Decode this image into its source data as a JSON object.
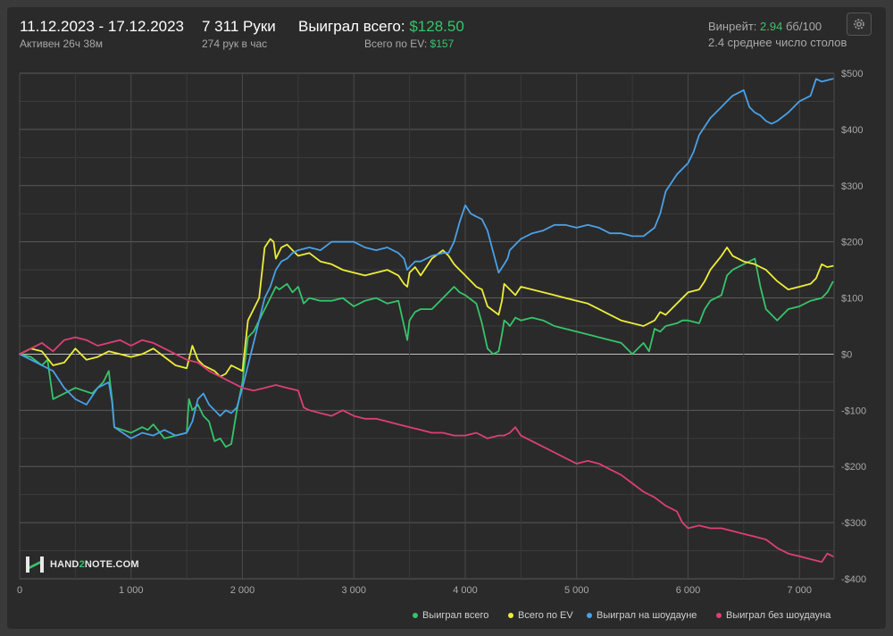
{
  "header": {
    "date_range": "11.12.2023 - 17.12.2023",
    "active": "Активен 26ч 38м",
    "hands": "7 311 Руки",
    "hands_per_hour": "274 рук в час",
    "won_label": "Выиграл всего:",
    "won_value": "$128.50",
    "ev_label": "Всего по EV:",
    "ev_value": "$157",
    "winrate_label": "Винрейт:",
    "winrate_value": "2.94",
    "winrate_unit": "бб/100",
    "avg_tables": "2.4 среднее число столов"
  },
  "logo": {
    "text_a": "HAND",
    "text_b": "2",
    "text_c": "NOTE.COM"
  },
  "colors": {
    "green": "#36c46b",
    "yellow": "#eded3a",
    "blue": "#4aa0e6",
    "pink": "#dc3f76"
  },
  "chart_data": {
    "type": "line",
    "xlim": [
      0,
      7311
    ],
    "ylim": [
      -400,
      500
    ],
    "x_ticks": [
      0,
      1000,
      2000,
      3000,
      4000,
      5000,
      6000,
      7000
    ],
    "x_tick_labels": [
      "0",
      "1 000",
      "2 000",
      "3 000",
      "4 000",
      "5 000",
      "6 000",
      "7 000"
    ],
    "y_ticks": [
      500,
      400,
      300,
      200,
      100,
      0,
      -100,
      -200,
      -300,
      -400
    ],
    "y_tick_labels": [
      "$500",
      "$400",
      "$300",
      "$200",
      "$100",
      "$0",
      "-$100",
      "-$200",
      "-$300",
      "-$400"
    ],
    "grid": true,
    "legend_position": "bottom-right",
    "series": [
      {
        "name": "Выиграл всего",
        "color": "#36c46b",
        "x": [
          0,
          100,
          200,
          250,
          300,
          500,
          650,
          750,
          800,
          830,
          850,
          1000,
          1100,
          1150,
          1200,
          1300,
          1400,
          1500,
          1520,
          1550,
          1600,
          1650,
          1700,
          1750,
          1800,
          1850,
          1900,
          1950,
          2000,
          2050,
          2100,
          2150,
          2200,
          2250,
          2300,
          2330,
          2400,
          2450,
          2500,
          2550,
          2600,
          2700,
          2800,
          2900,
          3000,
          3100,
          3200,
          3300,
          3400,
          3480,
          3500,
          3550,
          3600,
          3700,
          3800,
          3850,
          3900,
          3950,
          4000,
          4100,
          4150,
          4200,
          4250,
          4300,
          4330,
          4350,
          4380,
          4400,
          4450,
          4500,
          4600,
          4700,
          4800,
          4900,
          5000,
          5100,
          5200,
          5300,
          5400,
          5500,
          5600,
          5650,
          5700,
          5750,
          5800,
          5900,
          5950,
          6000,
          6100,
          6150,
          6200,
          6300,
          6350,
          6400,
          6500,
          6600,
          6650,
          6700,
          6800,
          6900,
          7000,
          7100,
          7200,
          7250,
          7300
        ],
        "y": [
          0,
          -5,
          -20,
          -10,
          -80,
          -60,
          -70,
          -50,
          -30,
          -80,
          -130,
          -140,
          -130,
          -135,
          -125,
          -150,
          -145,
          -140,
          -80,
          -100,
          -90,
          -110,
          -120,
          -155,
          -150,
          -165,
          -160,
          -100,
          -50,
          30,
          40,
          60,
          80,
          100,
          120,
          115,
          125,
          110,
          120,
          90,
          100,
          95,
          95,
          100,
          85,
          95,
          100,
          90,
          95,
          25,
          60,
          75,
          80,
          80,
          100,
          110,
          120,
          110,
          105,
          90,
          55,
          10,
          0,
          5,
          35,
          60,
          55,
          50,
          65,
          60,
          65,
          60,
          50,
          45,
          40,
          35,
          30,
          25,
          20,
          0,
          20,
          5,
          45,
          40,
          50,
          55,
          60,
          60,
          55,
          80,
          95,
          105,
          140,
          150,
          160,
          170,
          120,
          80,
          60,
          80,
          85,
          95,
          100,
          110,
          128.5
        ]
      },
      {
        "name": "Всего по EV",
        "color": "#eded3a",
        "x": [
          0,
          100,
          200,
          300,
          400,
          500,
          600,
          700,
          800,
          900,
          1000,
          1100,
          1200,
          1300,
          1400,
          1500,
          1550,
          1600,
          1650,
          1700,
          1750,
          1800,
          1850,
          1900,
          2000,
          2050,
          2100,
          2150,
          2200,
          2250,
          2280,
          2300,
          2350,
          2400,
          2450,
          2500,
          2600,
          2700,
          2800,
          2900,
          3000,
          3100,
          3200,
          3300,
          3400,
          3450,
          3480,
          3500,
          3550,
          3600,
          3700,
          3800,
          3850,
          3900,
          3950,
          4000,
          4100,
          4150,
          4200,
          4300,
          4330,
          4350,
          4400,
          4450,
          4500,
          4600,
          4700,
          4800,
          4900,
          5000,
          5100,
          5200,
          5300,
          5400,
          5500,
          5600,
          5700,
          5750,
          5800,
          5900,
          6000,
          6100,
          6150,
          6200,
          6300,
          6350,
          6400,
          6500,
          6600,
          6650,
          6700,
          6800,
          6900,
          7000,
          7100,
          7150,
          7200,
          7250,
          7300
        ],
        "y": [
          0,
          10,
          5,
          -20,
          -15,
          10,
          -10,
          -5,
          5,
          0,
          -5,
          0,
          10,
          -5,
          -20,
          -25,
          15,
          -10,
          -20,
          -25,
          -30,
          -40,
          -35,
          -20,
          -30,
          60,
          80,
          100,
          190,
          205,
          200,
          170,
          190,
          195,
          185,
          175,
          180,
          165,
          160,
          150,
          145,
          140,
          145,
          150,
          140,
          125,
          120,
          145,
          155,
          140,
          170,
          185,
          175,
          160,
          150,
          140,
          120,
          115,
          85,
          70,
          95,
          125,
          115,
          105,
          120,
          115,
          110,
          105,
          100,
          95,
          90,
          80,
          70,
          60,
          55,
          50,
          60,
          75,
          70,
          90,
          110,
          115,
          130,
          150,
          175,
          190,
          175,
          165,
          160,
          155,
          150,
          130,
          115,
          120,
          125,
          135,
          160,
          155,
          157
        ]
      },
      {
        "name": "Выиграл на шоудауне",
        "color": "#4aa0e6",
        "x": [
          0,
          100,
          200,
          300,
          400,
          500,
          600,
          700,
          800,
          830,
          850,
          1000,
          1100,
          1200,
          1300,
          1400,
          1500,
          1550,
          1600,
          1650,
          1700,
          1750,
          1800,
          1850,
          1900,
          1950,
          2000,
          2050,
          2100,
          2150,
          2200,
          2250,
          2300,
          2350,
          2400,
          2450,
          2500,
          2600,
          2700,
          2800,
          2900,
          3000,
          3100,
          3200,
          3300,
          3400,
          3450,
          3480,
          3500,
          3550,
          3600,
          3700,
          3800,
          3850,
          3900,
          3950,
          4000,
          4050,
          4100,
          4150,
          4200,
          4300,
          4350,
          4380,
          4400,
          4450,
          4500,
          4600,
          4700,
          4800,
          4900,
          5000,
          5100,
          5200,
          5300,
          5400,
          5500,
          5600,
          5700,
          5750,
          5800,
          5900,
          6000,
          6050,
          6100,
          6200,
          6300,
          6350,
          6400,
          6500,
          6550,
          6600,
          6650,
          6700,
          6750,
          6800,
          6900,
          7000,
          7100,
          7150,
          7200,
          7300
        ],
        "y": [
          0,
          -10,
          -20,
          -30,
          -60,
          -80,
          -90,
          -60,
          -50,
          -85,
          -130,
          -150,
          -140,
          -145,
          -135,
          -145,
          -140,
          -120,
          -80,
          -70,
          -90,
          -100,
          -110,
          -100,
          -105,
          -95,
          -60,
          -20,
          20,
          60,
          100,
          120,
          150,
          165,
          170,
          180,
          185,
          190,
          185,
          200,
          200,
          200,
          190,
          185,
          190,
          180,
          170,
          150,
          155,
          165,
          165,
          175,
          180,
          180,
          200,
          235,
          265,
          250,
          245,
          240,
          220,
          145,
          160,
          170,
          185,
          195,
          205,
          215,
          220,
          230,
          230,
          225,
          230,
          225,
          215,
          215,
          210,
          210,
          225,
          250,
          290,
          320,
          340,
          360,
          390,
          420,
          440,
          450,
          460,
          470,
          440,
          430,
          425,
          415,
          410,
          415,
          430,
          450,
          460,
          490,
          485,
          490
        ]
      },
      {
        "name": "Выиграл без шоудауна",
        "color": "#dc3f76",
        "x": [
          0,
          100,
          200,
          300,
          400,
          500,
          600,
          700,
          800,
          900,
          1000,
          1100,
          1200,
          1300,
          1400,
          1500,
          1600,
          1700,
          1750,
          1800,
          1900,
          2000,
          2100,
          2200,
          2300,
          2400,
          2500,
          2550,
          2600,
          2700,
          2800,
          2900,
          3000,
          3100,
          3200,
          3300,
          3400,
          3500,
          3600,
          3700,
          3800,
          3900,
          4000,
          4100,
          4200,
          4300,
          4350,
          4400,
          4450,
          4500,
          4600,
          4700,
          4800,
          4900,
          5000,
          5100,
          5200,
          5300,
          5400,
          5500,
          5600,
          5700,
          5800,
          5900,
          5950,
          6000,
          6100,
          6200,
          6300,
          6400,
          6500,
          6600,
          6700,
          6800,
          6900,
          7000,
          7100,
          7200,
          7250,
          7300
        ],
        "y": [
          0,
          10,
          20,
          5,
          25,
          30,
          25,
          15,
          20,
          25,
          15,
          25,
          20,
          10,
          0,
          -10,
          -15,
          -30,
          -35,
          -40,
          -50,
          -60,
          -65,
          -60,
          -55,
          -60,
          -65,
          -95,
          -100,
          -105,
          -110,
          -100,
          -110,
          -115,
          -115,
          -120,
          -125,
          -130,
          -135,
          -140,
          -140,
          -145,
          -145,
          -140,
          -150,
          -145,
          -145,
          -140,
          -130,
          -145,
          -155,
          -165,
          -175,
          -185,
          -195,
          -190,
          -195,
          -205,
          -215,
          -230,
          -245,
          -255,
          -270,
          -280,
          -300,
          -310,
          -305,
          -310,
          -310,
          -315,
          -320,
          -325,
          -330,
          -345,
          -355,
          -360,
          -365,
          -370,
          -355,
          -360
        ]
      }
    ]
  }
}
